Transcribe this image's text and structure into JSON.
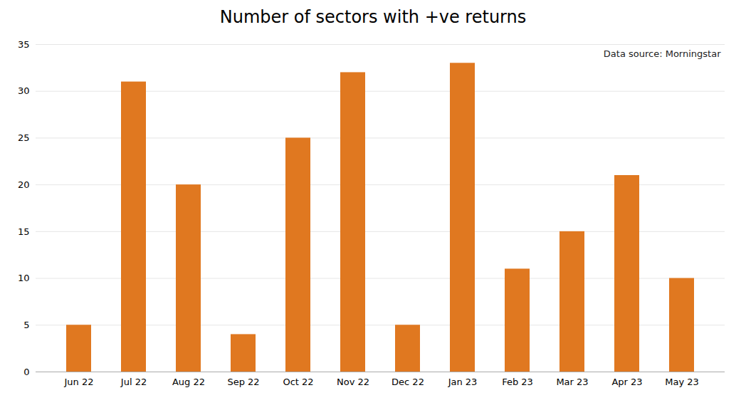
{
  "chart_data": {
    "type": "bar",
    "title": "Number of sectors with +ve returns",
    "categories": [
      "Jun 22",
      "Jul 22",
      "Aug 22",
      "Sep 22",
      "Oct 22",
      "Nov 22",
      "Dec 22",
      "Jan 23",
      "Feb 23",
      "Mar 23",
      "Apr 23",
      "May 23"
    ],
    "values": [
      5,
      31,
      20,
      4,
      25,
      32,
      5,
      33,
      11,
      15,
      21,
      10
    ],
    "color": "#E07820",
    "ylim": [
      0,
      35
    ],
    "yticks": [
      0,
      5,
      10,
      15,
      20,
      25,
      30,
      35
    ],
    "grid": true,
    "annotation": "Data source: Morningstar"
  }
}
